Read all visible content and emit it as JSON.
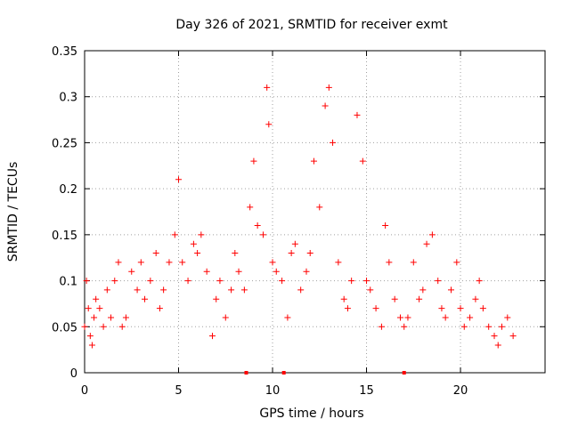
{
  "chart_data": {
    "type": "scatter",
    "title": "Day 326 of 2021, SRMTID for receiver exmt",
    "xlabel": "GPS time / hours",
    "ylabel": "SRMTID / TECUs",
    "xlim": [
      0,
      24.5
    ],
    "ylim": [
      0,
      0.35
    ],
    "xticks": [
      0,
      5,
      10,
      15,
      20
    ],
    "xtick_labels": [
      "0",
      "5",
      "10",
      "15",
      "20"
    ],
    "yticks": [
      0,
      0.05,
      0.1,
      0.15,
      0.2,
      0.25,
      0.3,
      0.35
    ],
    "ytick_labels": [
      "0",
      "0.05",
      "0.1",
      "0.15",
      "0.2",
      "0.25",
      "0.3",
      "0.35"
    ],
    "grid": true,
    "marker": "+",
    "color": "#ff0000",
    "axis_markers": {
      "x": [
        8.6,
        10.6,
        17.0
      ],
      "color": "#ff0000"
    },
    "series": [
      {
        "name": "SRMTID",
        "x": [
          0.0,
          0.1,
          0.2,
          0.3,
          0.4,
          0.5,
          0.6,
          0.8,
          1.0,
          1.2,
          1.4,
          1.6,
          1.8,
          2.0,
          2.2,
          2.5,
          2.8,
          3.0,
          3.2,
          3.5,
          3.8,
          4.0,
          4.2,
          4.5,
          4.8,
          5.0,
          5.2,
          5.5,
          5.8,
          6.0,
          6.2,
          6.5,
          6.8,
          7.0,
          7.2,
          7.5,
          7.8,
          8.0,
          8.2,
          8.5,
          8.8,
          9.0,
          9.2,
          9.5,
          9.7,
          9.8,
          10.0,
          10.2,
          10.5,
          10.8,
          11.0,
          11.2,
          11.5,
          11.8,
          12.0,
          12.2,
          12.5,
          12.8,
          13.0,
          13.2,
          13.5,
          13.8,
          14.0,
          14.2,
          14.5,
          14.8,
          15.0,
          15.2,
          15.5,
          15.8,
          16.0,
          16.2,
          16.5,
          16.8,
          17.0,
          17.2,
          17.5,
          17.8,
          18.0,
          18.2,
          18.5,
          18.8,
          19.0,
          19.2,
          19.5,
          19.8,
          20.0,
          20.2,
          20.5,
          20.8,
          21.0,
          21.2,
          21.5,
          21.8,
          22.0,
          22.2,
          22.5,
          22.8
        ],
        "y": [
          0.05,
          0.1,
          0.07,
          0.04,
          0.03,
          0.06,
          0.08,
          0.07,
          0.05,
          0.09,
          0.06,
          0.1,
          0.12,
          0.05,
          0.06,
          0.11,
          0.09,
          0.12,
          0.08,
          0.1,
          0.13,
          0.07,
          0.09,
          0.12,
          0.15,
          0.21,
          0.12,
          0.1,
          0.14,
          0.13,
          0.15,
          0.11,
          0.04,
          0.08,
          0.1,
          0.06,
          0.09,
          0.13,
          0.11,
          0.09,
          0.18,
          0.23,
          0.16,
          0.15,
          0.31,
          0.27,
          0.12,
          0.11,
          0.1,
          0.06,
          0.13,
          0.14,
          0.09,
          0.11,
          0.13,
          0.23,
          0.18,
          0.29,
          0.31,
          0.25,
          0.12,
          0.08,
          0.07,
          0.1,
          0.28,
          0.23,
          0.1,
          0.09,
          0.07,
          0.05,
          0.16,
          0.12,
          0.08,
          0.06,
          0.05,
          0.06,
          0.12,
          0.08,
          0.09,
          0.14,
          0.15,
          0.1,
          0.07,
          0.06,
          0.09,
          0.12,
          0.07,
          0.05,
          0.06,
          0.08,
          0.1,
          0.07,
          0.05,
          0.04,
          0.03,
          0.05,
          0.06,
          0.04
        ]
      }
    ]
  }
}
